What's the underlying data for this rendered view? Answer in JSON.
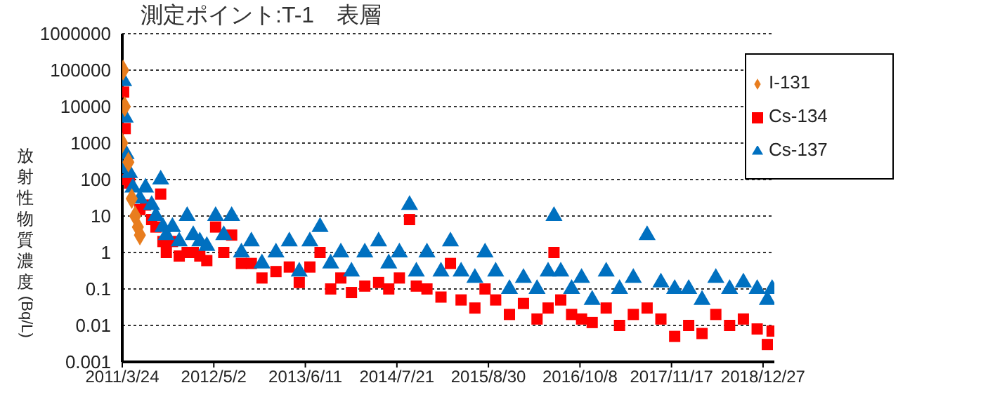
{
  "chart_data": {
    "type": "scatter",
    "title": "測定ポイント:T-1　表層",
    "ylabel": "放射性物質濃度(Bq/L)",
    "log": "y",
    "grid": "y",
    "legend": "top right",
    "xlim": [
      "2011-03-24",
      "2019-02-15"
    ],
    "xticks": [
      {
        "value": "2011-03-24",
        "label": "2011/3/24"
      },
      {
        "value": "2012-05-02",
        "label": "2012/5/2"
      },
      {
        "value": "2013-06-11",
        "label": "2013/6/11"
      },
      {
        "value": "2014-07-21",
        "label": "2014/7/21"
      },
      {
        "value": "2015-08-30",
        "label": "2015/8/30"
      },
      {
        "value": "2016-10-08",
        "label": "2016/10/8"
      },
      {
        "value": "2017-11-17",
        "label": "2017/11/17"
      },
      {
        "value": "2018-12-27",
        "label": "2018/12/27"
      }
    ],
    "ylim": [
      0.001,
      1000000
    ],
    "yticks": [
      0.001,
      0.01,
      0.1,
      1,
      10,
      100,
      1000,
      10000,
      100000,
      1000000
    ],
    "series": [
      {
        "name": "I-131",
        "color": "#e87d1e",
        "marker": "diamond",
        "x": [
          "2011-03-24",
          "2011-03-28",
          "2011-04-04",
          "2011-04-20",
          "2011-05-05",
          "2011-05-20",
          "2011-06-01",
          "2011-06-10"
        ],
        "values": [
          1000,
          100000,
          10000,
          300,
          30,
          10,
          5,
          3
        ]
      },
      {
        "name": "Cs-134",
        "color": "#ff0000",
        "marker": "square",
        "x": [
          "2011-03-24",
          "2011-03-30",
          "2011-04-06",
          "2011-04-25",
          "2011-06-10",
          "2011-07-05",
          "2011-08-01",
          "2011-08-20",
          "2011-09-10",
          "2011-09-20",
          "2011-10-05",
          "2011-11-01",
          "2011-12-01",
          "2012-01-05",
          "2012-02-01",
          "2012-03-01",
          "2012-04-01",
          "2012-05-10",
          "2012-06-15",
          "2012-07-20",
          "2012-09-01",
          "2012-10-15",
          "2012-12-01",
          "2013-02-01",
          "2013-04-01",
          "2013-05-15",
          "2013-07-01",
          "2013-08-15",
          "2013-10-01",
          "2013-11-15",
          "2014-01-01",
          "2014-03-01",
          "2014-05-01",
          "2014-06-15",
          "2014-08-01",
          "2014-09-15",
          "2014-10-15",
          "2014-12-01",
          "2015-02-01",
          "2015-03-15",
          "2015-05-01",
          "2015-07-01",
          "2015-08-15",
          "2015-10-01",
          "2015-12-01",
          "2016-02-01",
          "2016-04-01",
          "2016-05-20",
          "2016-06-15",
          "2016-07-15",
          "2016-09-01",
          "2016-10-15",
          "2016-12-01",
          "2017-02-01",
          "2017-04-01",
          "2017-06-01",
          "2017-08-01",
          "2017-10-01",
          "2017-12-01",
          "2018-02-01",
          "2018-04-01",
          "2018-06-01",
          "2018-08-01",
          "2018-10-01",
          "2018-12-01",
          "2019-01-15",
          "2019-02-05"
        ],
        "values": [
          100,
          25000,
          2500,
          80,
          15,
          20,
          8,
          5,
          40,
          2,
          1,
          2,
          0.8,
          1,
          1,
          0.8,
          0.6,
          5,
          1,
          3,
          0.5,
          0.5,
          0.2,
          0.3,
          0.4,
          0.15,
          0.4,
          1,
          0.1,
          0.2,
          0.08,
          0.12,
          0.15,
          0.1,
          0.2,
          8,
          0.12,
          0.1,
          0.06,
          0.5,
          0.05,
          0.03,
          0.1,
          0.05,
          0.02,
          0.04,
          0.015,
          0.03,
          1,
          0.05,
          0.02,
          0.015,
          0.012,
          0.03,
          0.01,
          0.02,
          0.03,
          0.015,
          0.005,
          0.01,
          0.006,
          0.02,
          0.01,
          0.015,
          0.008,
          0.003,
          0.007
        ]
      },
      {
        "name": "Cs-137",
        "color": "#0070c0",
        "marker": "triangle",
        "x": [
          "2011-03-24",
          "2011-03-30",
          "2011-04-06",
          "2011-04-10",
          "2011-04-25",
          "2011-05-10",
          "2011-06-10",
          "2011-07-05",
          "2011-08-01",
          "2011-08-20",
          "2011-09-10",
          "2011-09-20",
          "2011-10-05",
          "2011-11-01",
          "2011-12-01",
          "2012-01-05",
          "2012-02-01",
          "2012-03-01",
          "2012-04-01",
          "2012-05-10",
          "2012-06-15",
          "2012-07-20",
          "2012-09-01",
          "2012-10-15",
          "2012-12-01",
          "2013-02-01",
          "2013-04-01",
          "2013-05-15",
          "2013-07-01",
          "2013-08-15",
          "2013-10-01",
          "2013-11-15",
          "2014-01-01",
          "2014-03-01",
          "2014-05-01",
          "2014-06-15",
          "2014-08-01",
          "2014-09-15",
          "2014-10-15",
          "2014-12-01",
          "2015-02-01",
          "2015-03-15",
          "2015-05-01",
          "2015-07-01",
          "2015-08-15",
          "2015-10-01",
          "2015-12-01",
          "2016-02-01",
          "2016-04-01",
          "2016-05-20",
          "2016-06-15",
          "2016-07-15",
          "2016-09-01",
          "2016-10-15",
          "2016-12-01",
          "2017-02-01",
          "2017-04-01",
          "2017-06-01",
          "2017-08-01",
          "2017-10-01",
          "2017-12-01",
          "2018-02-01",
          "2018-04-01",
          "2018-06-01",
          "2018-08-01",
          "2018-10-01",
          "2018-12-01",
          "2019-01-15",
          "2019-02-05"
        ],
        "values": [
          200,
          50000,
          5000,
          500,
          150,
          60,
          30,
          60,
          20,
          10,
          100,
          5,
          3,
          5,
          2,
          10,
          3,
          2,
          1.5,
          10,
          3,
          10,
          1,
          2,
          0.5,
          1,
          2,
          0.3,
          2,
          5,
          0.5,
          1,
          0.3,
          1,
          2,
          0.5,
          1,
          20,
          0.3,
          1,
          0.3,
          2,
          0.3,
          0.2,
          1,
          0.3,
          0.1,
          0.2,
          0.1,
          0.3,
          10,
          0.3,
          0.1,
          0.2,
          0.05,
          0.3,
          0.1,
          0.2,
          3,
          0.15,
          0.1,
          0.1,
          0.05,
          0.2,
          0.1,
          0.15,
          0.1,
          0.05,
          0.1
        ]
      }
    ]
  }
}
